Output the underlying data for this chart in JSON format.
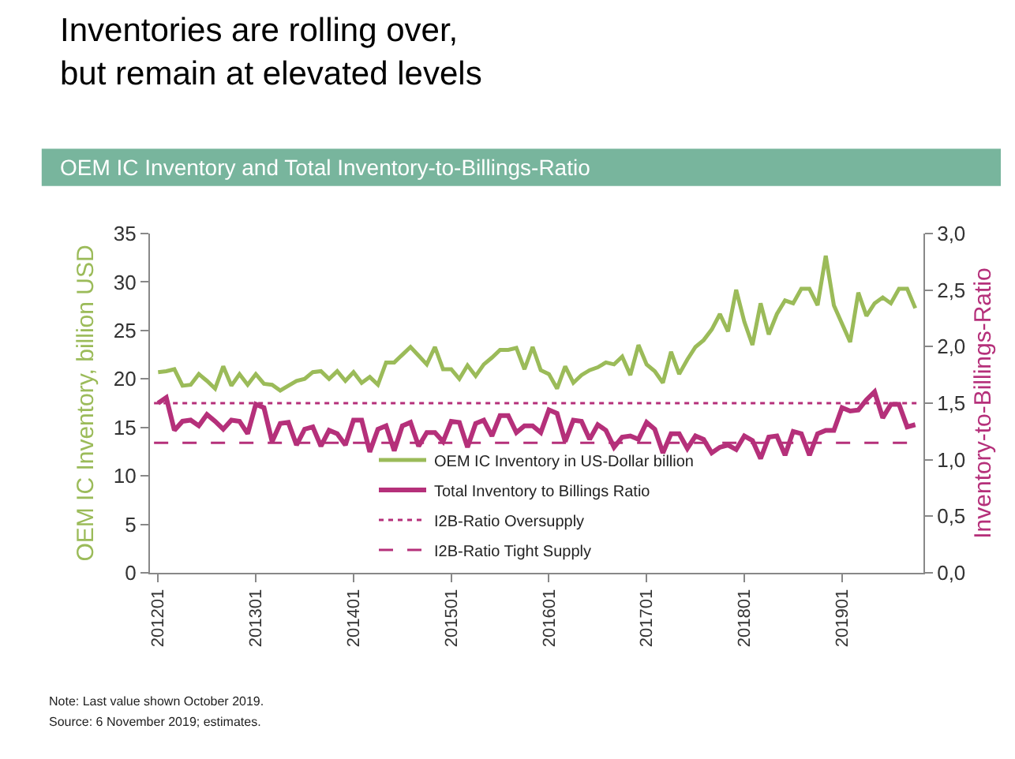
{
  "chart_data": {
    "type": "line",
    "title": "Inventories are rolling over,\nbut remain at elevated levels",
    "subtitle": "OEM IC Inventory and Total Inventory-to-Billings-Ratio",
    "ylabel": "OEM IC Inventory, billion USD",
    "y2label": "Inventory-to-Billings-Ratio",
    "categories": [
      "201201",
      null,
      null,
      null,
      null,
      null,
      null,
      null,
      null,
      null,
      null,
      null,
      "201301",
      null,
      null,
      null,
      null,
      null,
      null,
      null,
      null,
      null,
      null,
      null,
      "201401",
      null,
      null,
      null,
      null,
      null,
      null,
      null,
      null,
      null,
      null,
      null,
      "201501",
      null,
      null,
      null,
      null,
      null,
      null,
      null,
      null,
      null,
      null,
      null,
      "201601",
      null,
      null,
      null,
      null,
      null,
      null,
      null,
      null,
      null,
      null,
      null,
      "201701",
      null,
      null,
      null,
      null,
      null,
      null,
      null,
      null,
      null,
      null,
      null,
      "201801",
      null,
      null,
      null,
      null,
      null,
      null,
      null,
      null,
      null,
      null,
      null,
      "201901",
      null,
      null,
      null,
      null,
      null,
      null,
      null,
      null,
      null
    ],
    "series": [
      {
        "name": "OEM IC Inventory in US-Dollar billion",
        "color": "#9bbb59",
        "values": [
          20.7,
          20.8,
          21.0,
          19.3,
          19.4,
          20.5,
          19.8,
          19.0,
          21.3,
          19.3,
          20.5,
          19.4,
          20.5,
          19.5,
          19.4,
          18.8,
          19.3,
          19.8,
          20.0,
          20.7,
          20.8,
          20.0,
          20.8,
          19.8,
          20.7,
          19.6,
          20.2,
          19.4,
          21.7,
          21.7,
          22.5,
          23.3,
          22.4,
          21.5,
          23.3,
          21.0,
          21.0,
          20.0,
          21.4,
          20.3,
          21.5,
          22.2,
          23.0,
          23.0,
          23.2,
          21.0,
          23.3,
          20.9,
          20.5,
          19.0,
          21.3,
          19.6,
          20.4,
          20.9,
          21.2,
          21.7,
          21.5,
          22.3,
          20.4,
          23.5,
          21.5,
          20.8,
          19.6,
          22.8,
          20.5,
          22.0,
          23.3,
          24.0,
          25.1,
          26.7,
          24.9,
          29.2,
          25.9,
          23.5,
          27.8,
          24.6,
          26.7,
          28.1,
          27.8,
          29.3,
          29.3,
          27.6,
          32.7,
          27.6,
          25.7,
          23.8,
          28.9,
          26.5,
          27.8,
          28.4,
          27.8,
          29.3,
          29.3,
          27.3
        ]
      },
      {
        "name": "Total Inventory to Billings Ratio",
        "color": "#b5307a",
        "axis": "y2",
        "values": [
          1.5,
          1.55,
          1.26,
          1.34,
          1.35,
          1.3,
          1.4,
          1.34,
          1.27,
          1.35,
          1.34,
          1.23,
          1.49,
          1.46,
          1.16,
          1.32,
          1.33,
          1.13,
          1.27,
          1.29,
          1.12,
          1.26,
          1.23,
          1.13,
          1.35,
          1.35,
          1.07,
          1.27,
          1.3,
          1.08,
          1.3,
          1.33,
          1.12,
          1.24,
          1.24,
          1.16,
          1.34,
          1.33,
          1.11,
          1.32,
          1.35,
          1.21,
          1.39,
          1.39,
          1.24,
          1.3,
          1.3,
          1.24,
          1.44,
          1.41,
          1.16,
          1.35,
          1.34,
          1.18,
          1.31,
          1.26,
          1.11,
          1.2,
          1.21,
          1.18,
          1.33,
          1.27,
          1.06,
          1.23,
          1.23,
          1.1,
          1.21,
          1.18,
          1.06,
          1.11,
          1.13,
          1.09,
          1.21,
          1.17,
          1.01,
          1.2,
          1.21,
          1.04,
          1.25,
          1.23,
          1.04,
          1.23,
          1.26,
          1.26,
          1.46,
          1.43,
          1.44,
          1.53,
          1.6,
          1.37,
          1.49,
          1.49,
          1.29,
          1.31
        ]
      }
    ],
    "ref_lines": [
      {
        "axis": "y2",
        "value": 1.5,
        "label": "I2B-Ratio Oversupply",
        "color": "#b5307a",
        "line_style": "dotted"
      },
      {
        "axis": "y2",
        "value": 1.15,
        "label": "I2B-Ratio Tight Supply",
        "color": "#b5307a",
        "line_style": "dashed"
      }
    ],
    "ylim": [
      0,
      35
    ],
    "yticks": [
      0,
      5,
      10,
      15,
      20,
      25,
      30,
      35
    ],
    "y2lim": [
      0,
      3
    ],
    "y2ticks": [
      {
        "value": 0,
        "label": "0,0"
      },
      {
        "value": 0.5,
        "label": "0,5"
      },
      {
        "value": 1,
        "label": "1,0"
      },
      {
        "value": 1.5,
        "label": "1,5"
      },
      {
        "value": 2,
        "label": "2,0"
      },
      {
        "value": 2.5,
        "label": "2,5"
      },
      {
        "value": 3,
        "label": "3,0"
      }
    ],
    "legend": "bottom",
    "marker": "none",
    "annotations": [
      "Note: Last value shown October 2019.",
      "Source: 6 November 2019; estimates."
    ]
  }
}
